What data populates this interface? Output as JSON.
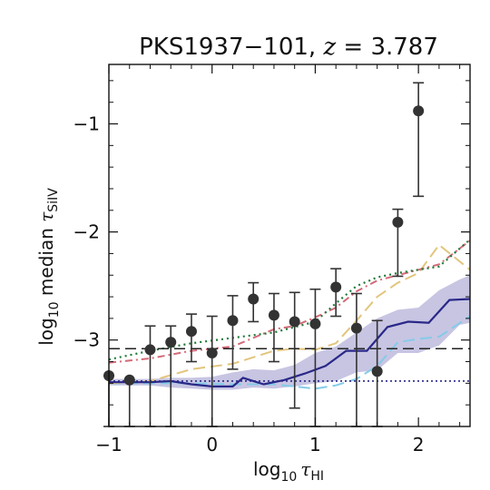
{
  "chart_data": {
    "type": "scatter",
    "title": "PKS1937−101, z = 3.787",
    "title_parts": {
      "object": "PKS1937−101, ",
      "var": "z",
      "rest": " = 3.787"
    },
    "xlabel": {
      "prefix": "log",
      "sub": "10",
      "sym": "τ",
      "sym_sub": "HI"
    },
    "ylabel": {
      "prefix": "log",
      "sub": "10",
      "mid": " median ",
      "sym": "τ",
      "sym_sub": "SiIV"
    },
    "xlim": [
      -1.0,
      2.5
    ],
    "ylim": [
      -3.8,
      -0.45
    ],
    "xticks": [
      -1,
      0,
      1,
      2
    ],
    "xtick_labels": [
      "−1",
      "0",
      "1",
      "2"
    ],
    "yticks": [
      -3,
      -2,
      -1
    ],
    "ytick_labels": [
      "−3",
      "−2",
      "−1"
    ],
    "grid": false,
    "legend": "none",
    "colors": {
      "points": "#333333",
      "solid_line": "#2a2888",
      "band": "#a9a6d3",
      "dashed_light_blue": "#84cbe8",
      "dashed_gold": "#e2c57e",
      "dashdot_red": "#d46a78",
      "dotted_green": "#1e7a38",
      "hline_dashed": "#222222",
      "hline_dotted": "#2a2888"
    },
    "points": [
      {
        "x": -1.0,
        "y": -3.33,
        "ylo": -3.8,
        "yhi": -3.33
      },
      {
        "x": -0.8,
        "y": -3.37,
        "ylo": -3.8,
        "yhi": -3.37
      },
      {
        "x": -0.6,
        "y": -3.09,
        "ylo": -3.8,
        "yhi": -2.87
      },
      {
        "x": -0.4,
        "y": -3.02,
        "ylo": -3.8,
        "yhi": -2.87
      },
      {
        "x": -0.2,
        "y": -2.92,
        "ylo": -3.2,
        "yhi": -2.76
      },
      {
        "x": 0.0,
        "y": -3.12,
        "ylo": -3.8,
        "yhi": -2.78
      },
      {
        "x": 0.2,
        "y": -2.82,
        "ylo": -3.27,
        "yhi": -2.59
      },
      {
        "x": 0.4,
        "y": -2.62,
        "ylo": -2.83,
        "yhi": -2.47
      },
      {
        "x": 0.6,
        "y": -2.77,
        "ylo": -3.2,
        "yhi": -2.57
      },
      {
        "x": 0.8,
        "y": -2.83,
        "ylo": -3.63,
        "yhi": -2.56
      },
      {
        "x": 1.0,
        "y": -2.85,
        "ylo": -3.8,
        "yhi": -2.53
      },
      {
        "x": 1.2,
        "y": -2.51,
        "ylo": -2.78,
        "yhi": -2.34
      },
      {
        "x": 1.4,
        "y": -2.89,
        "ylo": -3.8,
        "yhi": -2.57
      },
      {
        "x": 1.6,
        "y": -3.29,
        "ylo": -3.8,
        "yhi": -2.82
      },
      {
        "x": 1.8,
        "y": -1.91,
        "ylo": -2.41,
        "yhi": -1.79
      },
      {
        "x": 2.0,
        "y": -0.88,
        "ylo": -1.67,
        "yhi": -0.62
      }
    ],
    "solid_line": {
      "x": [
        -1.0,
        -0.8,
        -0.6,
        -0.4,
        -0.2,
        0.0,
        0.2,
        0.3,
        0.5,
        0.7,
        0.9,
        1.1,
        1.3,
        1.5,
        1.7,
        1.9,
        2.1,
        2.3,
        2.5
      ],
      "y": [
        -3.39,
        -3.39,
        -3.39,
        -3.38,
        -3.41,
        -3.43,
        -3.43,
        -3.35,
        -3.41,
        -3.37,
        -3.31,
        -3.24,
        -3.1,
        -3.1,
        -2.88,
        -2.83,
        -2.84,
        -2.63,
        -2.62
      ]
    },
    "band": {
      "x": [
        -1.0,
        -0.8,
        -0.6,
        -0.4,
        -0.2,
        0.0,
        0.2,
        0.4,
        0.6,
        0.8,
        1.0,
        1.2,
        1.4,
        1.6,
        1.8,
        2.0,
        2.2,
        2.4,
        2.5
      ],
      "y_upper": [
        -3.36,
        -3.36,
        -3.36,
        -3.35,
        -3.35,
        -3.34,
        -3.3,
        -3.27,
        -3.28,
        -3.23,
        -3.12,
        -3.06,
        -2.93,
        -2.8,
        -2.72,
        -2.7,
        -2.54,
        -2.44,
        -2.4
      ],
      "y_lower": [
        -3.42,
        -3.42,
        -3.42,
        -3.44,
        -3.45,
        -3.46,
        -3.46,
        -3.44,
        -3.45,
        -3.43,
        -3.4,
        -3.38,
        -3.3,
        -3.28,
        -3.12,
        -3.12,
        -3.05,
        -2.86,
        -2.84
      ]
    },
    "dashed_light_blue": {
      "x": [
        -1.0,
        -0.6,
        -0.2,
        0.2,
        0.6,
        0.8,
        1.0,
        1.2,
        1.4,
        1.6,
        1.8,
        2.0,
        2.2,
        2.5
      ],
      "y": [
        -3.4,
        -3.4,
        -3.4,
        -3.41,
        -3.41,
        -3.43,
        -3.45,
        -3.42,
        -3.36,
        -3.24,
        -3.02,
        -2.99,
        -2.97,
        -2.78
      ]
    },
    "dashed_gold": {
      "x": [
        -1.0,
        -0.6,
        -0.2,
        0.2,
        0.6,
        0.8,
        1.0,
        1.2,
        1.4,
        1.6,
        1.8,
        2.0,
        2.2,
        2.5
      ],
      "y": [
        -3.4,
        -3.38,
        -3.27,
        -3.22,
        -3.1,
        -3.08,
        -3.09,
        -3.03,
        -2.82,
        -2.6,
        -2.47,
        -2.38,
        -2.12,
        -2.35
      ]
    },
    "dashdot_red": {
      "x": [
        -1.0,
        -0.6,
        -0.2,
        0.2,
        0.6,
        0.8,
        1.0,
        1.2,
        1.4,
        1.6,
        1.8,
        2.0,
        2.2,
        2.5
      ],
      "y": [
        -3.21,
        -3.17,
        -3.1,
        -3.06,
        -2.9,
        -2.87,
        -2.79,
        -2.7,
        -2.55,
        -2.45,
        -2.4,
        -2.35,
        -2.3,
        -2.08
      ]
    },
    "dotted_green": {
      "x": [
        -1.0,
        -0.6,
        -0.2,
        0.2,
        0.6,
        0.8,
        1.0,
        1.2,
        1.4,
        1.6,
        1.8,
        2.0,
        2.2,
        2.5
      ],
      "y": [
        -3.18,
        -3.1,
        -3.03,
        -2.98,
        -2.93,
        -2.88,
        -2.83,
        -2.66,
        -2.5,
        -2.42,
        -2.38,
        -2.35,
        -2.32,
        -2.07
      ]
    },
    "hline_dashed_y": -3.08,
    "hline_dotted_y": -3.38
  }
}
